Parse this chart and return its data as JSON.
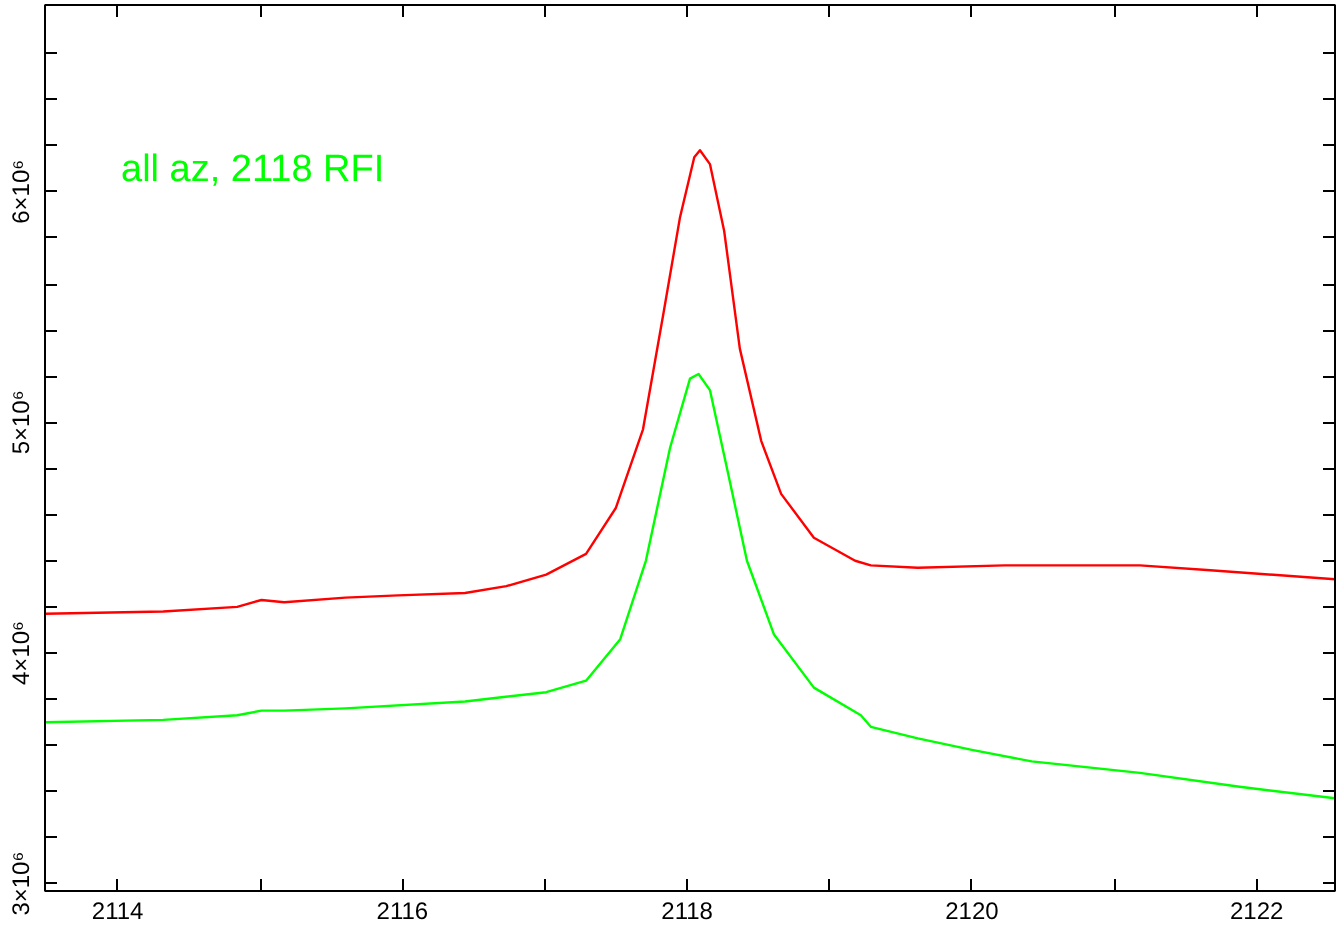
{
  "chart_data": {
    "type": "line",
    "annotations": [
      "all az, 2118 RFI"
    ],
    "xlim": [
      2113.49,
      2122.55
    ],
    "ylim": [
      2968000,
      6810000
    ],
    "xticks": [
      2114,
      {
        "value": 2115,
        "label": null
      },
      2116,
      {
        "value": 2117,
        "label": null
      },
      2118,
      {
        "value": 2119,
        "label": null
      },
      2120,
      {
        "value": 2121,
        "label": null
      },
      2122
    ],
    "yticks": [
      {
        "value": 3000000,
        "label": "3×10⁶"
      },
      {
        "value": 3200000,
        "label": null
      },
      {
        "value": 3400000,
        "label": null
      },
      {
        "value": 3600000,
        "label": null
      },
      {
        "value": 3800000,
        "label": null
      },
      {
        "value": 4000000,
        "label": "4×10⁶"
      },
      {
        "value": 4200000,
        "label": null
      },
      {
        "value": 4400000,
        "label": null
      },
      {
        "value": 4600000,
        "label": null
      },
      {
        "value": 4800000,
        "label": null
      },
      {
        "value": 5000000,
        "label": "5×10⁶"
      },
      {
        "value": 5200000,
        "label": null
      },
      {
        "value": 5400000,
        "label": null
      },
      {
        "value": 5600000,
        "label": null
      },
      {
        "value": 5800000,
        "label": null
      },
      {
        "value": 6000000,
        "label": "6×10⁶"
      },
      {
        "value": 6200000,
        "label": null
      },
      {
        "value": 6400000,
        "label": null
      },
      {
        "value": 6600000,
        "label": null
      }
    ],
    "grid": false,
    "line_style": "solid",
    "series": [
      {
        "color": "#ff0000",
        "x": [
          2113.49,
          2114.32,
          2114.84,
          2115.01,
          2115.17,
          2115.6,
          2115.97,
          2116.44,
          2116.73,
          2117.01,
          2117.29,
          2117.5,
          2117.69,
          2117.83,
          2117.95,
          2118.05,
          2118.09,
          2118.16,
          2118.26,
          2118.37,
          2118.52,
          2118.66,
          2118.89,
          2119.18,
          2119.29,
          2119.62,
          2120.23,
          2121.18,
          2121.65,
          2122.55
        ],
        "values": [
          4170000,
          4180000,
          4200000,
          4230000,
          4220000,
          4240000,
          4250000,
          4260000,
          4290000,
          4340000,
          4430000,
          4630000,
          4970000,
          5460000,
          5890000,
          6150000,
          6180000,
          6120000,
          5830000,
          5320000,
          4920000,
          4690000,
          4500000,
          4400000,
          4380000,
          4370000,
          4380000,
          4380000,
          4360000,
          4320000
        ]
      },
      {
        "color": "#00ff00",
        "x": [
          2113.49,
          2114.32,
          2114.84,
          2115.01,
          2115.17,
          2115.6,
          2116.44,
          2117.01,
          2117.29,
          2117.53,
          2117.71,
          2117.88,
          2118.02,
          2118.08,
          2118.16,
          2118.28,
          2118.42,
          2118.61,
          2118.89,
          2119.22,
          2119.29,
          2119.62,
          2120.0,
          2120.42,
          2121.18,
          2121.88,
          2122.55
        ],
        "values": [
          3700000,
          3710000,
          3730000,
          3750000,
          3750000,
          3760000,
          3790000,
          3830000,
          3880000,
          4060000,
          4400000,
          4890000,
          5190000,
          5210000,
          5140000,
          4800000,
          4400000,
          4080000,
          3850000,
          3730000,
          3680000,
          3630000,
          3580000,
          3530000,
          3480000,
          3420000,
          3370000
        ]
      }
    ]
  }
}
